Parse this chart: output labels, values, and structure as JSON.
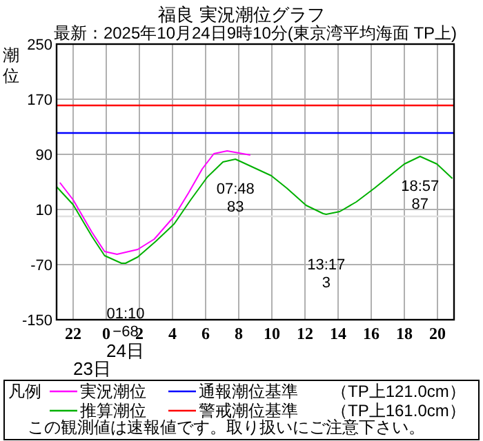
{
  "chart_data": {
    "type": "line",
    "title": "福良 実況潮位グラフ",
    "subtitle": "最新：2025年10月24日9時10分(東京湾平均海面 TP上)",
    "ylabel": "潮位",
    "legend_title": "凡例",
    "legend": "bottom",
    "grid": true,
    "marker": "none",
    "line_style": "solid",
    "xlim": [
      "2025-10-23T21:00",
      "2025-10-24T21:00"
    ],
    "xticks": [
      {
        "value": "2025-10-23T22:00",
        "label": "22"
      },
      {
        "value": "2025-10-24T00:00",
        "label": "0"
      },
      {
        "value": "2025-10-24T02:00",
        "label": "2"
      },
      {
        "value": "2025-10-24T04:00",
        "label": "4"
      },
      {
        "value": "2025-10-24T06:00",
        "label": "6"
      },
      {
        "value": "2025-10-24T08:00",
        "label": "8"
      },
      {
        "value": "2025-10-24T10:00",
        "label": "10"
      },
      {
        "value": "2025-10-24T12:00",
        "label": "12"
      },
      {
        "value": "2025-10-24T14:00",
        "label": "14"
      },
      {
        "value": "2025-10-24T16:00",
        "label": "16"
      },
      {
        "value": "2025-10-24T18:00",
        "label": "18"
      },
      {
        "value": "2025-10-24T20:00",
        "label": "20"
      }
    ],
    "ylim": [
      -150,
      250
    ],
    "yticks": [
      -150,
      -70,
      10,
      90,
      170,
      250
    ],
    "series": [
      {
        "name": "実況潮位",
        "color": "#ff00ff",
        "x": [
          "2025-10-23T21:12",
          "2025-10-23T22:00",
          "2025-10-23T23:08",
          "2025-10-23T23:54",
          "2025-10-24T00:39",
          "2025-10-24T01:54",
          "2025-10-24T02:54",
          "2025-10-24T04:06",
          "2025-10-24T04:58",
          "2025-10-24T05:48",
          "2025-10-24T06:30",
          "2025-10-24T07:18",
          "2025-10-24T08:00",
          "2025-10-24T08:42"
        ],
        "values": [
          49,
          24,
          -23,
          -51,
          -55,
          -48,
          -33,
          0,
          34,
          69,
          91,
          95,
          92,
          89
        ]
      },
      {
        "name": "推算潮位",
        "color": "#00b000",
        "x": [
          "2025-10-23T21:00",
          "2025-10-23T22:00",
          "2025-10-23T23:08",
          "2025-10-23T23:54",
          "2025-10-24T00:55",
          "2025-10-24T01:10",
          "2025-10-24T01:54",
          "2025-10-24T03:00",
          "2025-10-24T04:06",
          "2025-10-24T05:06",
          "2025-10-24T06:06",
          "2025-10-24T07:03",
          "2025-10-24T07:48",
          "2025-10-24T08:10",
          "2025-10-24T09:58",
          "2025-10-24T10:54",
          "2025-10-24T12:04",
          "2025-10-24T13:06",
          "2025-10-24T13:17",
          "2025-10-24T14:06",
          "2025-10-24T15:06",
          "2025-10-24T16:12",
          "2025-10-24T18:00",
          "2025-10-24T18:57",
          "2025-10-24T19:58",
          "2025-10-24T20:54"
        ],
        "values": [
          43,
          17,
          -29,
          -57,
          -68,
          -68,
          -59,
          -36,
          -11,
          24,
          57,
          79,
          83,
          79,
          59,
          41,
          16,
          4,
          3,
          7,
          21,
          41,
          76,
          87,
          76,
          55
        ]
      }
    ],
    "ref_lines": [
      {
        "axis": "y",
        "value": 0,
        "color": "#e0e0e0"
      },
      {
        "axis": "y",
        "value": 121,
        "color": "#0000ff",
        "label": "通報潮位基準　　（TP上121.0cm）"
      },
      {
        "axis": "y",
        "value": 161,
        "color": "#ff0000",
        "label": "警戒潮位基準　　（TP上161.0cm）"
      }
    ],
    "annotations": [
      {
        "text": "01:10\n−68",
        "x": "2025-10-24T01:10",
        "y": -68
      },
      {
        "text": "07:48\n83",
        "x": "2025-10-24T07:48",
        "y": 83
      },
      {
        "text": "13:17\n3",
        "x": "2025-10-24T13:17",
        "y": 3
      },
      {
        "text": "18:57\n87",
        "x": "2025-10-24T18:57",
        "y": 87
      },
      "24日",
      "23日",
      "この観測値は速報値です。取り扱いにご注意下さい。"
    ]
  }
}
